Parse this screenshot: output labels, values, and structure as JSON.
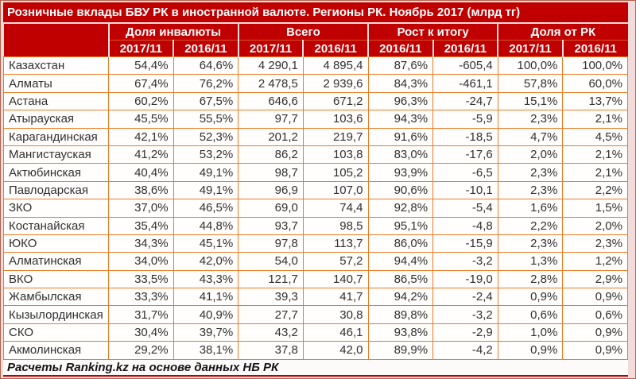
{
  "colors": {
    "header_red": "#c00000",
    "border_orange": "#ea7a26",
    "canvas_pink": "#f2dcdb",
    "bottom_line_red": "#c00000"
  },
  "chart_data": {
    "type": "table",
    "title": "Розничные вклады БВУ РК в иностранной валюте. Регионы РК. Ноябрь 2017 (млрд тг)",
    "region_column_header": "",
    "column_groups": [
      {
        "label": "Доля инвалюты",
        "sub": [
          "2017/11",
          "2016/11"
        ]
      },
      {
        "label": "Всего",
        "sub": [
          "2017/11",
          "2016/11"
        ]
      },
      {
        "label": "Рост к итогу",
        "sub": [
          "2016/11",
          "2016/11"
        ]
      },
      {
        "label": "Доля от РК",
        "sub": [
          "2017/11",
          "2016/11"
        ]
      }
    ],
    "rows": [
      {
        "region": "Казахстан",
        "values": [
          "54,4%",
          "64,6%",
          "4 290,1",
          "4 895,4",
          "87,6%",
          "-605,4",
          "100,0%",
          "100,0%"
        ]
      },
      {
        "region": "Алматы",
        "values": [
          "67,4%",
          "76,2%",
          "2 478,5",
          "2 939,6",
          "84,3%",
          "-461,1",
          "57,8%",
          "60,0%"
        ]
      },
      {
        "region": "Астана",
        "values": [
          "60,2%",
          "67,5%",
          "646,6",
          "671,2",
          "96,3%",
          "-24,7",
          "15,1%",
          "13,7%"
        ]
      },
      {
        "region": "Атырауская",
        "values": [
          "45,5%",
          "55,5%",
          "97,7",
          "103,6",
          "94,3%",
          "-5,9",
          "2,3%",
          "2,1%"
        ]
      },
      {
        "region": "Карагандинская",
        "values": [
          "42,1%",
          "52,3%",
          "201,2",
          "219,7",
          "91,6%",
          "-18,5",
          "4,7%",
          "4,5%"
        ]
      },
      {
        "region": "Мангистауская",
        "values": [
          "41,2%",
          "53,2%",
          "86,2",
          "103,8",
          "83,0%",
          "-17,6",
          "2,0%",
          "2,1%"
        ]
      },
      {
        "region": "Актюбинская",
        "values": [
          "40,4%",
          "49,1%",
          "98,7",
          "105,2",
          "93,9%",
          "-6,5",
          "2,3%",
          "2,1%"
        ]
      },
      {
        "region": "Павлодарская",
        "values": [
          "38,6%",
          "49,1%",
          "96,9",
          "107,0",
          "90,6%",
          "-10,1",
          "2,3%",
          "2,2%"
        ]
      },
      {
        "region": "ЗКО",
        "values": [
          "37,0%",
          "46,5%",
          "69,0",
          "74,4",
          "92,8%",
          "-5,4",
          "1,6%",
          "1,5%"
        ]
      },
      {
        "region": "Костанайская",
        "values": [
          "35,4%",
          "44,8%",
          "93,7",
          "98,5",
          "95,1%",
          "-4,8",
          "2,2%",
          "2,0%"
        ]
      },
      {
        "region": "ЮКО",
        "values": [
          "34,3%",
          "45,1%",
          "97,8",
          "113,7",
          "86,0%",
          "-15,9",
          "2,3%",
          "2,3%"
        ]
      },
      {
        "region": "Алматинская",
        "values": [
          "34,0%",
          "42,0%",
          "54,0",
          "57,2",
          "94,4%",
          "-3,2",
          "1,3%",
          "1,2%"
        ]
      },
      {
        "region": "ВКО",
        "values": [
          "33,5%",
          "43,3%",
          "121,7",
          "140,7",
          "86,5%",
          "-19,0",
          "2,8%",
          "2,9%"
        ]
      },
      {
        "region": "Жамбылская",
        "values": [
          "33,3%",
          "41,1%",
          "39,3",
          "41,7",
          "94,2%",
          "-2,4",
          "0,9%",
          "0,9%"
        ]
      },
      {
        "region": "Кызылординская",
        "values": [
          "31,7%",
          "40,9%",
          "27,7",
          "30,8",
          "89,8%",
          "-3,2",
          "0,6%",
          "0,6%"
        ]
      },
      {
        "region": "СКО",
        "values": [
          "30,4%",
          "39,7%",
          "43,2",
          "46,1",
          "93,8%",
          "-2,9",
          "1,0%",
          "0,9%"
        ]
      },
      {
        "region": "Акмолинская",
        "values": [
          "29,2%",
          "38,1%",
          "37,8",
          "42,0",
          "89,9%",
          "-4,2",
          "0,9%",
          "0,9%"
        ]
      }
    ],
    "source_note": "Расчеты Ranking.kz на основе данных НБ РК"
  }
}
